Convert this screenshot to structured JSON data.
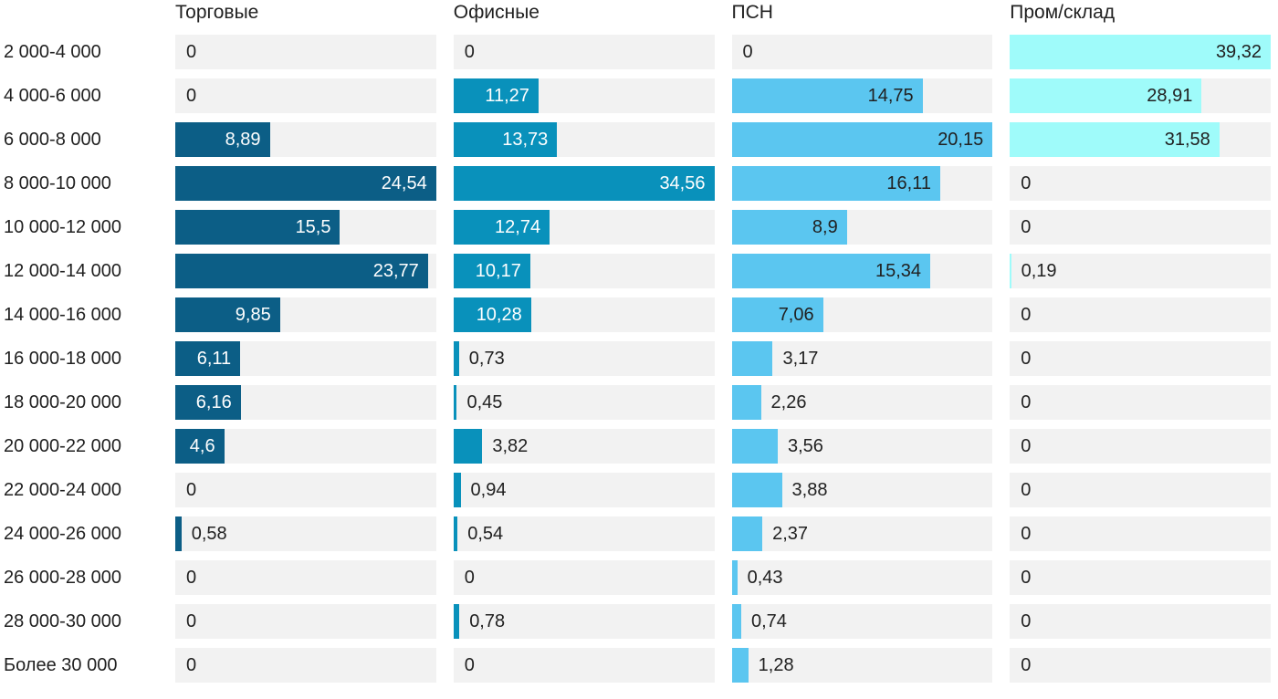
{
  "chart_data": {
    "type": "bar",
    "orientation": "horizontal",
    "title": "",
    "xlabel": "",
    "ylabel": "",
    "grid": false,
    "legend_position": "column-headers-top",
    "scaling_note": "each column is scaled independently so that its max value fills the full track width",
    "decimal_separator": ",",
    "track_color": "#f2f2f2",
    "outside_label_color": "#212121",
    "row_label_color": "#212121",
    "header_color": "#212121",
    "categories": [
      "2 000-4 000",
      "4 000-6 000",
      "6 000-8 000",
      "8 000-10 000",
      "10 000-12 000",
      "12 000-14 000",
      "14 000-16 000",
      "16 000-18 000",
      "18 000-20 000",
      "20 000-22 000",
      "22 000-24 000",
      "24 000-26 000",
      "26 000-28 000",
      "28 000-30 000",
      "Более 30 000"
    ],
    "series": [
      {
        "name": "Торговые",
        "color": "#0c5e86",
        "inside_label_color": "#ffffff",
        "values": [
          0,
          0,
          8.89,
          24.54,
          15.5,
          23.77,
          9.85,
          6.11,
          6.16,
          4.6,
          0,
          0.58,
          0,
          0,
          0
        ]
      },
      {
        "name": "Офисные",
        "color": "#0991bb",
        "inside_label_color": "#ffffff",
        "values": [
          0,
          11.27,
          13.73,
          34.56,
          12.74,
          10.17,
          10.28,
          0.73,
          0.45,
          3.82,
          0.94,
          0.54,
          0,
          0.78,
          0
        ]
      },
      {
        "name": "ПСН",
        "color": "#5bc6f0",
        "inside_label_color": "#212121",
        "values": [
          0,
          14.75,
          20.15,
          16.11,
          8.9,
          15.34,
          7.06,
          3.17,
          2.26,
          3.56,
          3.88,
          2.37,
          0.43,
          0.74,
          1.28
        ]
      },
      {
        "name": "Пром/склад",
        "color": "#9ffbfa",
        "inside_label_color": "#212121",
        "values": [
          39.32,
          28.91,
          31.58,
          0,
          0,
          0.19,
          0,
          0,
          0,
          0,
          0,
          0,
          0,
          0,
          0
        ]
      }
    ]
  }
}
